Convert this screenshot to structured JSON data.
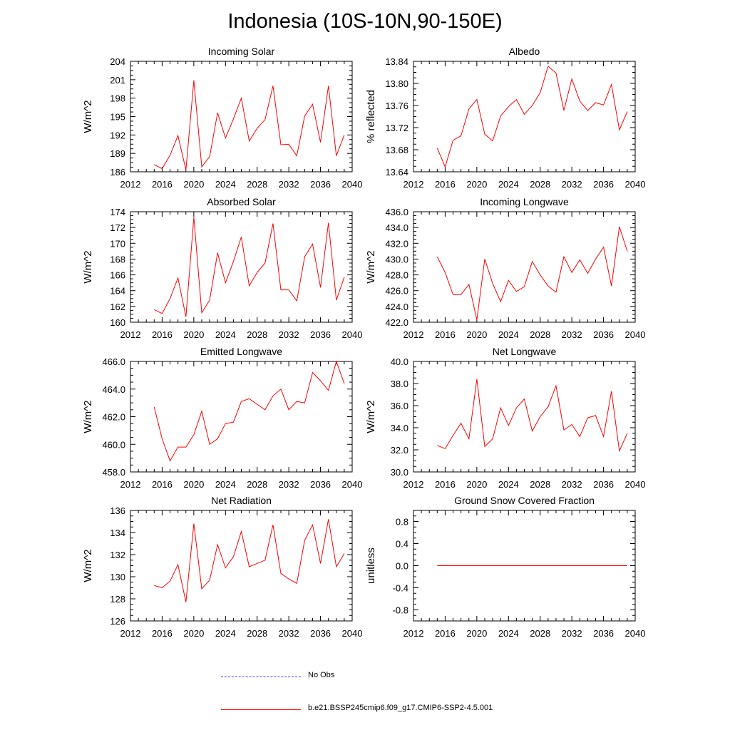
{
  "figure": {
    "title": "Indonesia (10S-10N,90-150E)"
  },
  "legend": {
    "obs_label": "No Obs",
    "obs_color": "#3b3bd6",
    "model_label": "b.e21.BSSP245cmip6.f09_g17.CMIP6-SSP2-4.5.001",
    "model_color": "#ff0000"
  },
  "chart_data": [
    {
      "type": "line",
      "title": "Incoming Solar",
      "ylabel": "W/m^2",
      "xlim": [
        2012,
        2040
      ],
      "ylim": [
        186,
        204
      ],
      "xticks": [
        "2012",
        "2016",
        "2020",
        "2024",
        "2028",
        "2032",
        "2036",
        "2040"
      ],
      "yticks": [
        "186",
        "189",
        "192",
        "195",
        "198",
        "201",
        "204"
      ],
      "x": [
        2015,
        2016,
        2017,
        2018,
        2019,
        2020,
        2021,
        2022,
        2023,
        2024,
        2025,
        2026,
        2027,
        2028,
        2029,
        2030,
        2031,
        2032,
        2033,
        2034,
        2035,
        2036,
        2037,
        2038,
        2039
      ],
      "series": [
        {
          "color": "#ff0000",
          "values": [
            187.2,
            186.5,
            188.7,
            191.9,
            186.3,
            200.9,
            186.8,
            188.5,
            195.6,
            191.5,
            194.6,
            198.0,
            191.0,
            193.1,
            194.5,
            200.0,
            190.4,
            190.5,
            188.6,
            195.1,
            197.0,
            190.8,
            200.0,
            188.6,
            192.0
          ]
        }
      ]
    },
    {
      "type": "line",
      "title": "Albedo",
      "ylabel": "% reflected",
      "xlim": [
        2012,
        2040
      ],
      "ylim": [
        13.64,
        13.84
      ],
      "xticks": [
        "2012",
        "2016",
        "2020",
        "2024",
        "2028",
        "2032",
        "2036",
        "2040"
      ],
      "yticks": [
        "13.64",
        "13.68",
        "13.72",
        "13.76",
        "13.80",
        "13.84"
      ],
      "x": [
        2015,
        2016,
        2017,
        2018,
        2019,
        2020,
        2021,
        2022,
        2023,
        2024,
        2025,
        2026,
        2027,
        2028,
        2029,
        2030,
        2031,
        2032,
        2033,
        2034,
        2035,
        2036,
        2037,
        2038,
        2039
      ],
      "series": [
        {
          "color": "#ff0000",
          "values": [
            13.683,
            13.649,
            13.697,
            13.705,
            13.754,
            13.771,
            13.708,
            13.696,
            13.741,
            13.758,
            13.771,
            13.744,
            13.76,
            13.783,
            13.831,
            13.819,
            13.751,
            13.808,
            13.768,
            13.751,
            13.765,
            13.761,
            13.798,
            13.716,
            13.749
          ]
        }
      ]
    },
    {
      "type": "line",
      "title": "Absorbed Solar",
      "ylabel": "W/m^2",
      "xlim": [
        2012,
        2040
      ],
      "ylim": [
        160,
        174
      ],
      "xticks": [
        "2012",
        "2016",
        "2020",
        "2024",
        "2028",
        "2032",
        "2036",
        "2040"
      ],
      "yticks": [
        "160",
        "162",
        "164",
        "166",
        "168",
        "170",
        "172",
        "174"
      ],
      "x": [
        2015,
        2016,
        2017,
        2018,
        2019,
        2020,
        2021,
        2022,
        2023,
        2024,
        2025,
        2026,
        2027,
        2028,
        2029,
        2030,
        2031,
        2032,
        2033,
        2034,
        2035,
        2036,
        2037,
        2038,
        2039
      ],
      "series": [
        {
          "color": "#ff0000",
          "values": [
            161.6,
            161.1,
            163.0,
            165.6,
            160.7,
            173.3,
            161.2,
            162.8,
            168.8,
            165.0,
            167.7,
            170.8,
            164.6,
            166.3,
            167.5,
            172.5,
            164.1,
            164.1,
            162.7,
            168.3,
            169.9,
            164.4,
            172.6,
            162.8,
            165.7
          ]
        }
      ]
    },
    {
      "type": "line",
      "title": "Incoming Longwave",
      "ylabel": "W/m^2",
      "xlim": [
        2012,
        2040
      ],
      "ylim": [
        422.0,
        436.0
      ],
      "xticks": [
        "2012",
        "2016",
        "2020",
        "2024",
        "2028",
        "2032",
        "2036",
        "2040"
      ],
      "yticks": [
        "422.0",
        "424.0",
        "426.0",
        "428.0",
        "430.0",
        "432.0",
        "434.0",
        "436.0"
      ],
      "x": [
        2015,
        2016,
        2017,
        2018,
        2019,
        2020,
        2021,
        2022,
        2023,
        2024,
        2025,
        2026,
        2027,
        2028,
        2029,
        2030,
        2031,
        2032,
        2033,
        2034,
        2035,
        2036,
        2037,
        2038,
        2039
      ],
      "series": [
        {
          "color": "#ff0000",
          "values": [
            430.3,
            428.3,
            425.5,
            425.5,
            426.8,
            422.3,
            430.0,
            426.9,
            424.6,
            427.3,
            425.9,
            426.5,
            429.7,
            428.0,
            426.6,
            425.8,
            430.3,
            428.3,
            429.9,
            428.2,
            430.0,
            431.5,
            426.6,
            434.1,
            431.0
          ]
        }
      ]
    },
    {
      "type": "line",
      "title": "Emitted Longwave",
      "ylabel": "W/m^2",
      "xlim": [
        2012,
        2040
      ],
      "ylim": [
        458.0,
        466.0
      ],
      "xticks": [
        "2012",
        "2016",
        "2020",
        "2024",
        "2028",
        "2032",
        "2036",
        "2040"
      ],
      "yticks": [
        "458.0",
        "460.0",
        "462.0",
        "464.0",
        "466.0"
      ],
      "x": [
        2015,
        2016,
        2017,
        2018,
        2019,
        2020,
        2021,
        2022,
        2023,
        2024,
        2025,
        2026,
        2027,
        2028,
        2029,
        2030,
        2031,
        2032,
        2033,
        2034,
        2035,
        2036,
        2037,
        2038,
        2039
      ],
      "series": [
        {
          "color": "#ff0000",
          "values": [
            462.7,
            460.4,
            458.8,
            459.8,
            459.8,
            460.7,
            462.4,
            460.0,
            460.4,
            461.5,
            461.6,
            463.1,
            463.3,
            462.9,
            462.5,
            463.5,
            464.0,
            462.5,
            463.1,
            463.0,
            465.2,
            464.6,
            463.9,
            466.0,
            464.4
          ]
        }
      ]
    },
    {
      "type": "line",
      "title": "Net Longwave",
      "ylabel": "W/m^2",
      "xlim": [
        2012,
        2040
      ],
      "ylim": [
        30.0,
        40.0
      ],
      "xticks": [
        "2012",
        "2016",
        "2020",
        "2024",
        "2028",
        "2032",
        "2036",
        "2040"
      ],
      "yticks": [
        "30.0",
        "32.0",
        "34.0",
        "36.0",
        "38.0",
        "40.0"
      ],
      "x": [
        2015,
        2016,
        2017,
        2018,
        2019,
        2020,
        2021,
        2022,
        2023,
        2024,
        2025,
        2026,
        2027,
        2028,
        2029,
        2030,
        2031,
        2032,
        2033,
        2034,
        2035,
        2036,
        2037,
        2038,
        2039
      ],
      "series": [
        {
          "color": "#ff0000",
          "values": [
            32.4,
            32.1,
            33.3,
            34.4,
            33.0,
            38.4,
            32.3,
            33.0,
            35.8,
            34.2,
            35.8,
            36.6,
            33.7,
            35.0,
            35.9,
            37.8,
            33.8,
            34.3,
            33.2,
            34.9,
            35.1,
            33.2,
            37.3,
            31.9,
            33.5
          ]
        }
      ]
    },
    {
      "type": "line",
      "title": "Net Radiation",
      "ylabel": "W/m^2",
      "xlim": [
        2012,
        2040
      ],
      "ylim": [
        126,
        136
      ],
      "xticks": [
        "2012",
        "2016",
        "2020",
        "2024",
        "2028",
        "2032",
        "2036",
        "2040"
      ],
      "yticks": [
        "126",
        "128",
        "130",
        "132",
        "134",
        "136"
      ],
      "x": [
        2015,
        2016,
        2017,
        2018,
        2019,
        2020,
        2021,
        2022,
        2023,
        2024,
        2025,
        2026,
        2027,
        2028,
        2029,
        2030,
        2031,
        2032,
        2033,
        2034,
        2035,
        2036,
        2037,
        2038,
        2039
      ],
      "series": [
        {
          "color": "#ff0000",
          "values": [
            129.2,
            129.0,
            129.6,
            131.1,
            127.7,
            134.8,
            128.9,
            129.7,
            132.9,
            130.8,
            131.8,
            134.1,
            130.9,
            131.2,
            131.5,
            134.7,
            130.3,
            129.8,
            129.4,
            133.3,
            134.7,
            131.2,
            135.2,
            130.9,
            132.1
          ]
        }
      ]
    },
    {
      "type": "line",
      "title": "Ground Snow Covered Fraction",
      "ylabel": "unitless",
      "xlim": [
        2012,
        2040
      ],
      "ylim": [
        -1.0,
        1.0
      ],
      "xticks": [
        "2012",
        "2016",
        "2020",
        "2024",
        "2028",
        "2032",
        "2036",
        "2040"
      ],
      "yticks": [
        "-0.8",
        "-0.4",
        "0.0",
        "0.4",
        "0.8"
      ],
      "ytick_values": [
        -0.8,
        -0.4,
        0.0,
        0.4,
        0.8
      ],
      "x": [
        2015,
        2016,
        2017,
        2018,
        2019,
        2020,
        2021,
        2022,
        2023,
        2024,
        2025,
        2026,
        2027,
        2028,
        2029,
        2030,
        2031,
        2032,
        2033,
        2034,
        2035,
        2036,
        2037,
        2038,
        2039
      ],
      "series": [
        {
          "color": "#ff0000",
          "values": [
            0,
            0,
            0,
            0,
            0,
            0,
            0,
            0,
            0,
            0,
            0,
            0,
            0,
            0,
            0,
            0,
            0,
            0,
            0,
            0,
            0,
            0,
            0,
            0,
            0
          ]
        }
      ]
    }
  ]
}
